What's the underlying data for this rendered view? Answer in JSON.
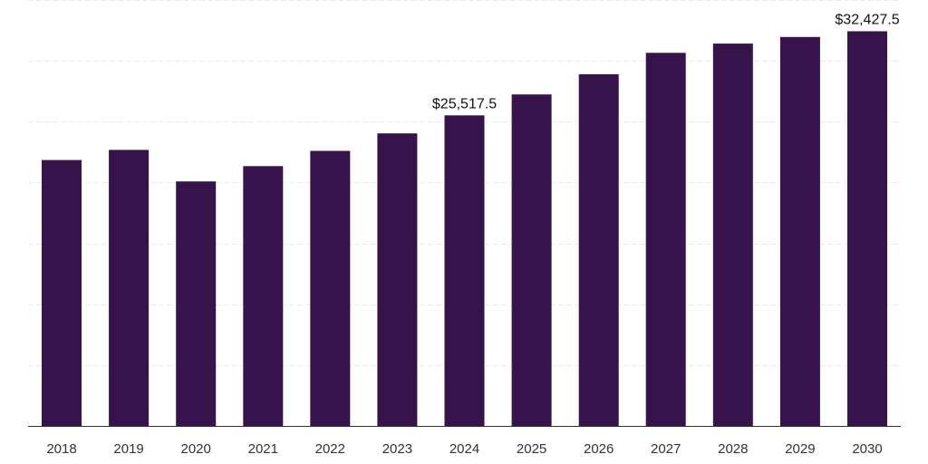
{
  "chart_data": {
    "type": "bar",
    "title": "",
    "xlabel": "",
    "ylabel": "",
    "categories": [
      "2018",
      "2019",
      "2020",
      "2021",
      "2022",
      "2023",
      "2024",
      "2025",
      "2026",
      "2027",
      "2028",
      "2029",
      "2030"
    ],
    "values": [
      21850,
      22680,
      20090,
      21350,
      22600,
      24040,
      25517.5,
      27240,
      28900,
      30660,
      31420,
      31960,
      32427.5
    ],
    "data_labels": [
      {
        "category": "2024",
        "text": "$25,517.5"
      },
      {
        "category": "2030",
        "text": "$32,427.5"
      }
    ],
    "ylim": [
      0,
      35000
    ],
    "grid": true,
    "legend": "none",
    "bar_color": "#36134a"
  }
}
